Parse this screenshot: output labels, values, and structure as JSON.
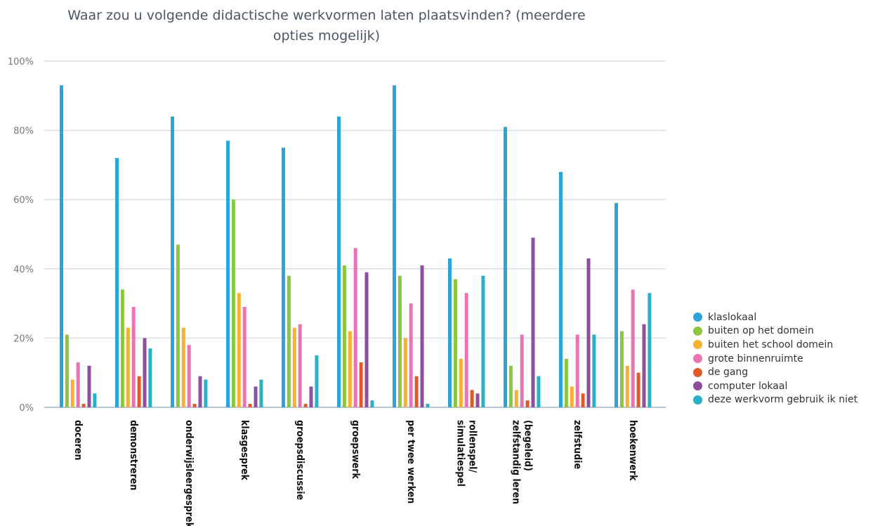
{
  "chart_data": {
    "type": "bar",
    "title": "Waar zou u volgende didactische werkvormen laten plaatsvinden? (meerdere opties mogelijk)",
    "title_lines": [
      "Waar zou u volgende didactische werkvormen laten plaatsvinden? (meerdere",
      "opties mogelijk)"
    ],
    "xlabel": "",
    "ylabel": "",
    "ylim": [
      0,
      100
    ],
    "yticks": [
      0,
      20,
      40,
      60,
      80,
      100
    ],
    "ytick_labels": [
      "0%",
      "20%",
      "40%",
      "60%",
      "80%",
      "100%"
    ],
    "grid": true,
    "legend_position": "right",
    "categories": [
      [
        "doceren"
      ],
      [
        "demonstreren"
      ],
      [
        "onderwijsleergesprek"
      ],
      [
        "klasgesprek"
      ],
      [
        "groepsdiscussie"
      ],
      [
        "groepswerk"
      ],
      [
        "per twee werken"
      ],
      [
        "rollenspel/",
        "simulatiespel"
      ],
      [
        "(begeleid)",
        "zelfstandig leren"
      ],
      [
        "zelfstudie"
      ],
      [
        "hoekenwerk"
      ]
    ],
    "series": [
      {
        "name": "klaslokaal",
        "color": "#2aa5dc",
        "values": [
          93,
          72,
          84,
          77,
          75,
          84,
          93,
          43,
          81,
          68,
          59
        ]
      },
      {
        "name": "buiten op het domein",
        "color": "#8cc63f",
        "values": [
          21,
          34,
          47,
          60,
          38,
          41,
          38,
          37,
          12,
          14,
          22
        ]
      },
      {
        "name": "buiten het school domein",
        "color": "#f6b131",
        "values": [
          8,
          23,
          23,
          33,
          23,
          22,
          20,
          14,
          5,
          6,
          12
        ]
      },
      {
        "name": "grote binnenruimte",
        "color": "#ea73b4",
        "values": [
          13,
          29,
          18,
          29,
          24,
          46,
          30,
          33,
          21,
          21,
          34
        ]
      },
      {
        "name": "de gang",
        "color": "#e25a26",
        "values": [
          1,
          9,
          1,
          1,
          1,
          13,
          9,
          5,
          2,
          4,
          10
        ]
      },
      {
        "name": "computer lokaal",
        "color": "#8e4f9f",
        "values": [
          12,
          20,
          9,
          6,
          6,
          39,
          41,
          4,
          49,
          43,
          24
        ]
      },
      {
        "name": "deze werkvorm gebruik ik niet",
        "color": "#27b0c7",
        "values": [
          4,
          17,
          8,
          8,
          15,
          2,
          1,
          38,
          9,
          21,
          33
        ]
      }
    ]
  }
}
